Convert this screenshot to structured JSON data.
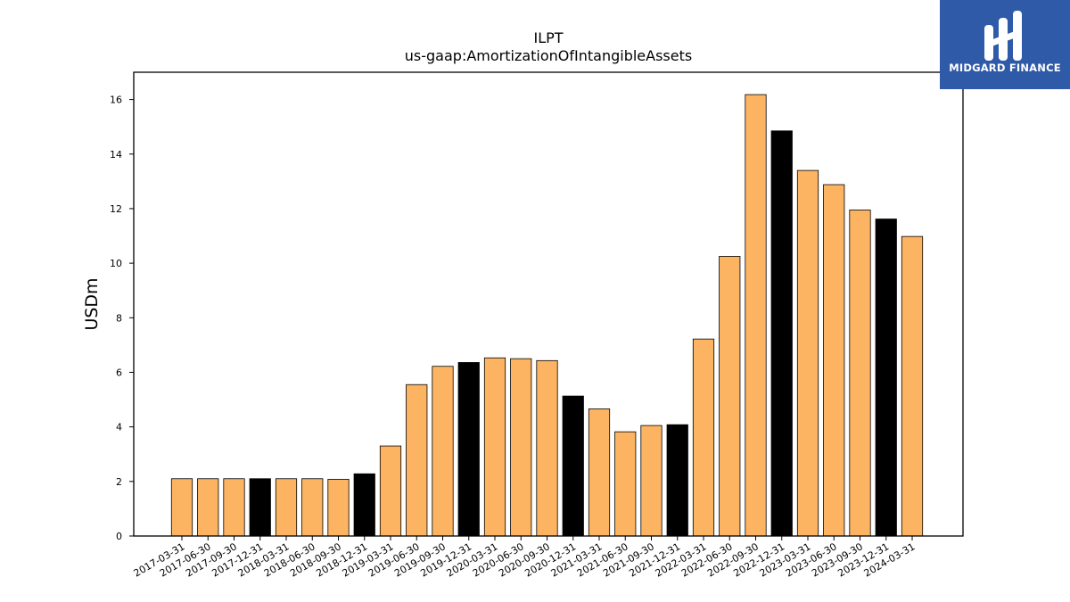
{
  "chart_data": {
    "type": "bar",
    "title": "ILPT",
    "subtitle": "us-gaap:AmortizationOfIntangibleAssets",
    "ylabel": "USDm",
    "ylim": [
      0,
      17
    ],
    "yticks": [
      0,
      2,
      4,
      6,
      8,
      10,
      12,
      14,
      16
    ],
    "grid": false,
    "categories": [
      "2017-03-31",
      "2017-06-30",
      "2017-09-30",
      "2017-12-31",
      "2018-03-31",
      "2018-06-30",
      "2018-09-30",
      "2018-12-31",
      "2019-03-31",
      "2019-06-30",
      "2019-09-30",
      "2019-12-31",
      "2020-03-31",
      "2020-06-30",
      "2020-09-30",
      "2020-12-31",
      "2021-03-31",
      "2021-06-30",
      "2021-09-30",
      "2021-12-31",
      "2022-03-31",
      "2022-06-30",
      "2022-09-30",
      "2022-12-31",
      "2023-03-31",
      "2023-06-30",
      "2023-09-30",
      "2023-12-31",
      "2024-03-31"
    ],
    "values": [
      2.1,
      2.1,
      2.1,
      2.1,
      2.1,
      2.1,
      2.08,
      2.28,
      3.3,
      5.55,
      6.22,
      6.36,
      6.53,
      6.5,
      6.43,
      5.13,
      4.66,
      3.82,
      4.05,
      4.08,
      7.22,
      10.25,
      16.18,
      14.85,
      13.4,
      12.88,
      11.95,
      11.62,
      10.98
    ],
    "bar_colors": [
      "#fdb462",
      "#fdb462",
      "#fdb462",
      "#000000",
      "#fdb462",
      "#fdb462",
      "#fdb462",
      "#000000",
      "#fdb462",
      "#fdb462",
      "#fdb462",
      "#000000",
      "#fdb462",
      "#fdb462",
      "#fdb462",
      "#000000",
      "#fdb462",
      "#fdb462",
      "#fdb462",
      "#000000",
      "#fdb462",
      "#fdb462",
      "#fdb462",
      "#000000",
      "#fdb462",
      "#fdb462",
      "#fdb462",
      "#000000",
      "#fdb462"
    ]
  },
  "logo": {
    "text": "MIDGARD FINANCE",
    "background": "#2f5aa8",
    "icon": "midgard-logo-icon"
  }
}
